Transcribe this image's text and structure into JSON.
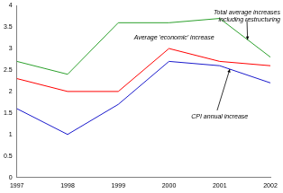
{
  "chart_data": {
    "type": "line",
    "categories": [
      "1997",
      "1998",
      "1999",
      "2000",
      "2001",
      "2002"
    ],
    "series": [
      {
        "name": "Total average increases including restructuring",
        "color": "#2ca02c",
        "values": [
          2.7,
          2.4,
          3.6,
          3.6,
          3.7,
          2.8
        ]
      },
      {
        "name": "Average 'economic' increase",
        "color": "#ff0000",
        "values": [
          2.3,
          2.0,
          2.0,
          3.0,
          2.7,
          2.6
        ]
      },
      {
        "name": "CPI annual increase",
        "color": "#1a1acc",
        "values": [
          1.6,
          1.0,
          1.7,
          2.7,
          2.6,
          2.2
        ]
      }
    ],
    "ylim": [
      0,
      4
    ],
    "yticks": [
      0,
      0.5,
      1,
      1.5,
      2,
      2.5,
      3,
      3.5,
      4
    ],
    "grid": false
  }
}
